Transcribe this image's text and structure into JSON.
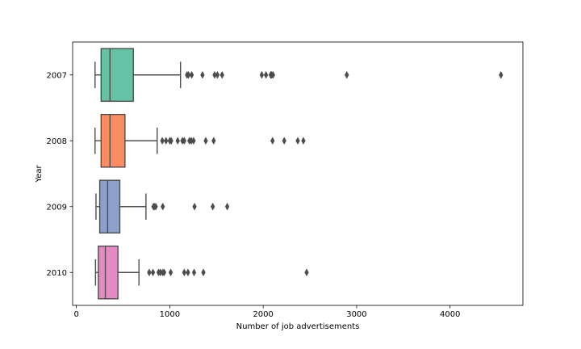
{
  "chart_data": {
    "type": "boxplot",
    "orientation": "horizontal",
    "title": "",
    "xlabel": "Number of job advertisements",
    "ylabel": "Year",
    "xlim": [
      -40,
      4780
    ],
    "xticks": [
      0,
      1000,
      2000,
      3000,
      4000
    ],
    "grid": false,
    "legend": "none",
    "categories": [
      "2007",
      "2008",
      "2009",
      "2010"
    ],
    "series": [
      {
        "category": "2007",
        "color": "#66c2a5",
        "whisker_low": 200,
        "q1": 265,
        "median": 360,
        "q3": 610,
        "whisker_high": 1115,
        "outliers": [
          1185,
          1200,
          1235,
          1350,
          1480,
          1510,
          1560,
          1985,
          2030,
          2080,
          2090,
          2105,
          2895,
          4545
        ]
      },
      {
        "category": "2008",
        "color": "#fc8d62",
        "whisker_low": 200,
        "q1": 265,
        "median": 360,
        "q3": 520,
        "whisker_high": 865,
        "outliers": [
          920,
          960,
          1000,
          1015,
          1085,
          1135,
          1155,
          1210,
          1230,
          1255,
          1385,
          1470,
          2100,
          2225,
          2370,
          2430
        ]
      },
      {
        "category": "2009",
        "color": "#8da0cb",
        "whisker_low": 210,
        "q1": 250,
        "median": 335,
        "q3": 465,
        "whisker_high": 745,
        "outliers": [
          825,
          835,
          850,
          925,
          1265,
          1460,
          1615
        ]
      },
      {
        "category": "2010",
        "color": "#e78ac3",
        "whisker_low": 205,
        "q1": 235,
        "median": 310,
        "q3": 445,
        "whisker_high": 670,
        "outliers": [
          780,
          820,
          880,
          900,
          925,
          940,
          1010,
          1155,
          1195,
          1260,
          1360,
          2465
        ]
      }
    ]
  }
}
